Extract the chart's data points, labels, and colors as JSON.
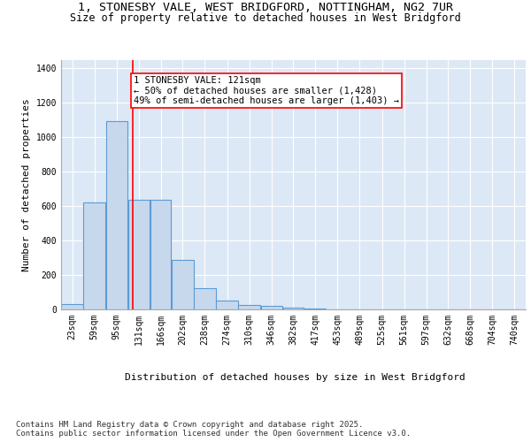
{
  "title_line1": "1, STONESBY VALE, WEST BRIDGFORD, NOTTINGHAM, NG2 7UR",
  "title_line2": "Size of property relative to detached houses in West Bridgford",
  "xlabel": "Distribution of detached houses by size in West Bridgford",
  "ylabel": "Number of detached properties",
  "bar_labels": [
    "23sqm",
    "59sqm",
    "95sqm",
    "131sqm",
    "166sqm",
    "202sqm",
    "238sqm",
    "274sqm",
    "310sqm",
    "346sqm",
    "382sqm",
    "417sqm",
    "453sqm",
    "489sqm",
    "525sqm",
    "561sqm",
    "597sqm",
    "632sqm",
    "668sqm",
    "704sqm",
    "740sqm"
  ],
  "bar_values": [
    30,
    620,
    1095,
    635,
    635,
    290,
    125,
    50,
    25,
    20,
    10,
    3,
    2,
    1,
    1,
    0,
    0,
    0,
    0,
    0,
    0
  ],
  "bar_color": "#c8d8ec",
  "bar_edge_color": "#5b9bd5",
  "bar_edge_width": 0.8,
  "red_line_x": 121,
  "bin_edges": [
    5,
    41,
    77,
    113,
    149,
    184,
    220,
    256,
    292,
    328,
    364,
    399,
    435,
    471,
    507,
    543,
    579,
    615,
    650,
    686,
    722,
    758
  ],
  "annotation_text": "1 STONESBY VALE: 121sqm\n← 50% of detached houses are smaller (1,428)\n49% of semi-detached houses are larger (1,403) →",
  "red_line_xval": 121,
  "ylim": [
    0,
    1450
  ],
  "yticks": [
    0,
    200,
    400,
    600,
    800,
    1000,
    1200,
    1400
  ],
  "bg_color": "#dce8f5",
  "grid_color": "#ffffff",
  "fig_bg_color": "#ffffff",
  "footer_text": "Contains HM Land Registry data © Crown copyright and database right 2025.\nContains public sector information licensed under the Open Government Licence v3.0.",
  "title_fontsize": 9.5,
  "subtitle_fontsize": 8.5,
  "axis_label_fontsize": 8,
  "tick_fontsize": 7,
  "annotation_fontsize": 7.5
}
